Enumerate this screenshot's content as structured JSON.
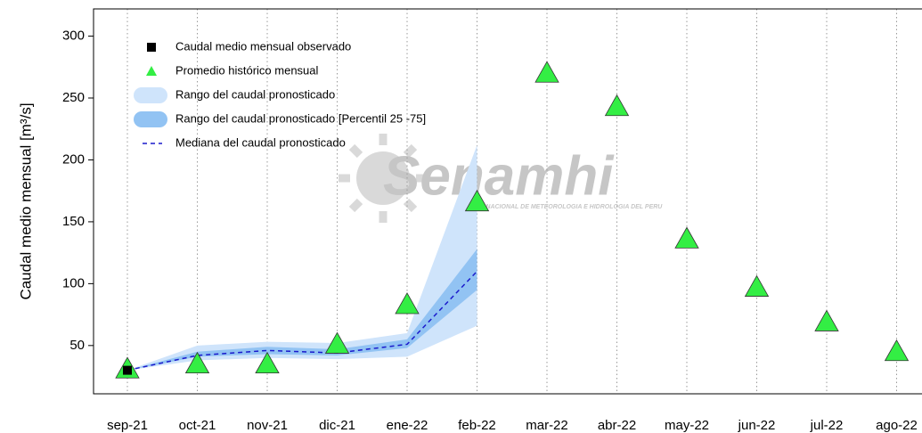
{
  "chart_data": {
    "type": "line",
    "y_label": "Caudal medio mensual  [m³/s]",
    "categories": [
      "sep-21",
      "oct-21",
      "nov-21",
      "dic-21",
      "ene-22",
      "feb-22",
      "mar-22",
      "abr-22",
      "may-22",
      "jun-22",
      "jul-22",
      "ago-22"
    ],
    "ylim": [
      11,
      322
    ],
    "yticks": [
      50,
      100,
      150,
      200,
      250,
      300
    ],
    "grid": true,
    "watermark": {
      "title": "Senamhi",
      "subtitle": "SERVICIO NACIONAL DE METEOROLOGIA E HIDROLOGIA DEL PERU"
    },
    "series": [
      {
        "name": "Caudal medio mensual observado",
        "kind": "points",
        "marker": "square",
        "color": "#000000",
        "values": [
          30,
          null,
          null,
          null,
          null,
          null,
          null,
          null,
          null,
          null,
          null,
          null
        ]
      },
      {
        "name": "Promedio histórico mensual",
        "kind": "points",
        "marker": "triangle",
        "color": "#33ee44",
        "values": [
          31,
          35,
          35,
          51,
          83,
          166,
          270,
          243,
          136,
          97,
          69,
          45
        ]
      },
      {
        "name": "Rango del caudal pronosticado",
        "kind": "band",
        "color": "#cfe4fb",
        "lower": [
          30,
          38,
          40,
          39,
          41,
          66,
          null,
          null,
          null,
          null,
          null,
          null
        ],
        "upper": [
          30,
          50,
          53,
          52,
          60,
          212,
          null,
          null,
          null,
          null,
          null,
          null
        ]
      },
      {
        "name": "Rango del caudal pronosticado [Percentil 25 -75]",
        "kind": "band",
        "color": "#92c3f3",
        "lower": [
          30,
          41,
          43,
          42,
          48,
          95,
          null,
          null,
          null,
          null,
          null,
          null
        ],
        "upper": [
          30,
          45,
          49,
          47,
          55,
          128,
          null,
          null,
          null,
          null,
          null,
          null
        ]
      },
      {
        "name": "Mediana del caudal pronosticado",
        "kind": "dashed",
        "color": "#1a1acc",
        "values": [
          30,
          42,
          46,
          44,
          51,
          110,
          null,
          null,
          null,
          null,
          null,
          null
        ]
      }
    ]
  }
}
